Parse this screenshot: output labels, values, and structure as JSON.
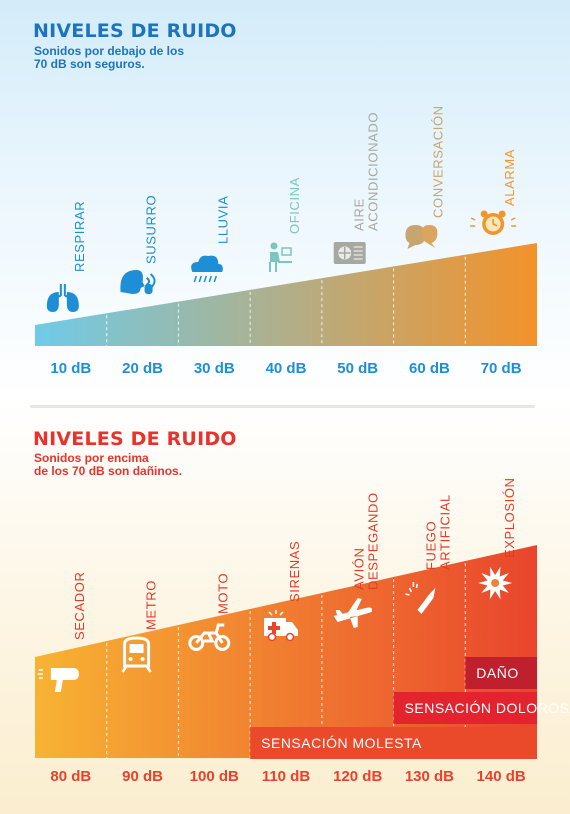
{
  "top": {
    "title": "NIVELES DE RUIDO",
    "subtitle": "Sonidos por debajo de los\n70 dB son seguros.",
    "levels": [
      {
        "label": "RESPIRAR",
        "db": "10 dB",
        "color": "#1e8fd6",
        "icon": "lungs-icon"
      },
      {
        "label": "SUSURRO",
        "db": "20 dB",
        "color": "#1e8fd6",
        "icon": "whisper-icon"
      },
      {
        "label": "LLUVIA",
        "db": "30 dB",
        "color": "#1e8fd6",
        "icon": "rain-cloud-icon"
      },
      {
        "label": "OFICINA",
        "db": "40 dB",
        "color": "#7ec4c0",
        "icon": "office-worker-icon"
      },
      {
        "label": "AIRE\nACONDICIONADO",
        "db": "50 dB",
        "color": "#a8a8a2",
        "icon": "air-conditioner-icon"
      },
      {
        "label": "CONVERSACIÓN",
        "db": "60 dB",
        "color": "#c8a46e",
        "icon": "speech-bubbles-icon"
      },
      {
        "label": "ALARMA",
        "db": "70 dB",
        "color": "#f0962a",
        "icon": "alarm-clock-icon"
      }
    ]
  },
  "bottom": {
    "title": "NIVELES DE RUIDO",
    "subtitle": "Sonidos por encima\nde los 70 dB son dañinos.",
    "levels": [
      {
        "label": "SECADOR",
        "db": "80 dB",
        "icon": "hair-dryer-icon"
      },
      {
        "label": "METRO",
        "db": "90 dB",
        "icon": "metro-train-icon"
      },
      {
        "label": "MOTO",
        "db": "100 dB",
        "icon": "motorcycle-icon"
      },
      {
        "label": "SIRENAS",
        "db": "110 dB",
        "icon": "ambulance-icon"
      },
      {
        "label": "AVIÓN\nDESPEGANDO",
        "db": "120 dB",
        "icon": "airplane-icon"
      },
      {
        "label": "FUEGO\nARTIFICIAL",
        "db": "130 dB",
        "icon": "firework-icon"
      },
      {
        "label": "EXPLOSIÓN",
        "db": "140 dB",
        "icon": "explosion-icon"
      }
    ],
    "bands": [
      {
        "label": "DAÑO",
        "from_level": 6,
        "color": "#c01f2d"
      },
      {
        "label": "SENSACIÓN DOLOROSA",
        "from_level": 5,
        "color": "#e3242f"
      },
      {
        "label": "SENSACIÓN MOLESTA",
        "from_level": 3,
        "color": "#ea4a2a"
      }
    ]
  },
  "colors": {
    "top_title": "#1e73be",
    "top_ramp_start": "#6fcbe8",
    "top_ramp_end": "#f3922a",
    "top_db": "#1e8fd6",
    "bottom_title": "#e8322c",
    "bottom_ramp_start": "#f7b333",
    "bottom_ramp_end": "#e9452d",
    "bottom_text": "#e8422c"
  }
}
